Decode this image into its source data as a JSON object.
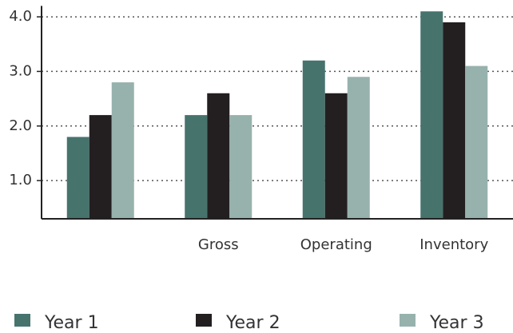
{
  "chart_data": {
    "type": "bar",
    "categories": [
      null,
      "Gross",
      "Operating",
      "Inventory"
    ],
    "series": [
      {
        "name": "Year 1",
        "color": "#47736d",
        "values": [
          1.8,
          2.2,
          3.2,
          4.1
        ]
      },
      {
        "name": "Year 2",
        "color": "#231f20",
        "values": [
          2.2,
          2.6,
          2.6,
          3.9
        ]
      },
      {
        "name": "Year 3",
        "color": "#97b2ad",
        "values": [
          2.8,
          2.2,
          2.9,
          3.1
        ]
      }
    ],
    "ylim": [
      0.3,
      4.2
    ],
    "yticks": [
      {
        "value": 1,
        "label": "1.0"
      },
      {
        "value": 2,
        "label": "2.0"
      },
      {
        "value": 3,
        "label": "3.0"
      },
      {
        "value": 4,
        "label": "4.0"
      }
    ],
    "grid": true,
    "legend": "bottom"
  }
}
